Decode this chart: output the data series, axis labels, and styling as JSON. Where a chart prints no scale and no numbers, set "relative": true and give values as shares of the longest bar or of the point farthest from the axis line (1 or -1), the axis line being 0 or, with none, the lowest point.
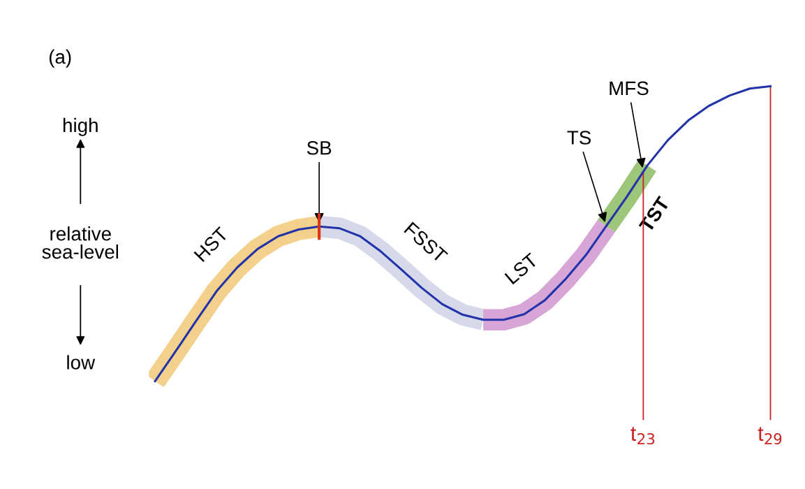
{
  "chart_data": {
    "type": "line",
    "relative": true,
    "title": "(a)",
    "ylabel": "relative\nsea-level",
    "legend": false,
    "marker": "none",
    "line_style": "solid",
    "annotations": [
      "high",
      "low",
      "SB",
      "TS",
      "MFS",
      "t$_{23}$",
      "t$_{29}$"
    ],
    "categories": [
      null,
      null,
      null,
      null,
      null,
      null,
      null,
      null,
      null,
      null,
      null,
      null,
      null,
      null,
      null,
      null,
      null,
      null,
      null,
      null,
      null,
      null,
      null,
      null,
      null,
      null,
      null,
      null,
      null,
      null,
      null
    ],
    "series": [
      {
        "name": "HST",
        "color": "#f3d08c",
        "values": [
          0,
          0.101,
          0.204,
          0.305,
          0.385,
          0.448,
          0.491,
          0.514,
          0.524,
          null,
          null,
          null,
          null,
          null,
          null,
          null,
          null,
          null,
          null,
          null,
          null,
          null,
          null,
          null,
          null,
          null,
          null,
          null,
          null,
          null,
          null
        ]
      },
      {
        "name": "FSST",
        "color": "#d6d9ea",
        "values": [
          null,
          null,
          null,
          null,
          null,
          null,
          null,
          null,
          0.524,
          0.518,
          0.491,
          0.44,
          0.379,
          0.316,
          0.261,
          0.225,
          0.208,
          null,
          null,
          null,
          null,
          null,
          null,
          null,
          null,
          null,
          null,
          null,
          null,
          null,
          null
        ]
      },
      {
        "name": "LST",
        "color": "#d7a6d6",
        "values": [
          null,
          null,
          null,
          null,
          null,
          null,
          null,
          null,
          null,
          null,
          null,
          null,
          null,
          null,
          null,
          null,
          0.208,
          0.208,
          0.227,
          0.274,
          0.345,
          0.427,
          0.526,
          null,
          null,
          null,
          null,
          null,
          null,
          null,
          null
        ]
      },
      {
        "name": "TST",
        "color": "#9dc67a",
        "values": [
          null,
          null,
          null,
          null,
          null,
          null,
          null,
          null,
          null,
          null,
          null,
          null,
          null,
          null,
          null,
          null,
          null,
          null,
          null,
          null,
          null,
          null,
          0.526,
          0.625,
          0.731,
          null,
          null,
          null,
          null,
          null,
          null
        ]
      },
      {
        "color": "#2233aa",
        "values": [
          0,
          0.101,
          0.204,
          0.305,
          0.385,
          0.448,
          0.491,
          0.514,
          0.524,
          0.518,
          0.491,
          0.44,
          0.379,
          0.316,
          0.261,
          0.225,
          0.208,
          0.208,
          0.227,
          0.274,
          0.345,
          0.427,
          0.526,
          0.625,
          0.731,
          0.817,
          0.884,
          0.933,
          0.968,
          0.992,
          1
        ]
      }
    ]
  }
}
